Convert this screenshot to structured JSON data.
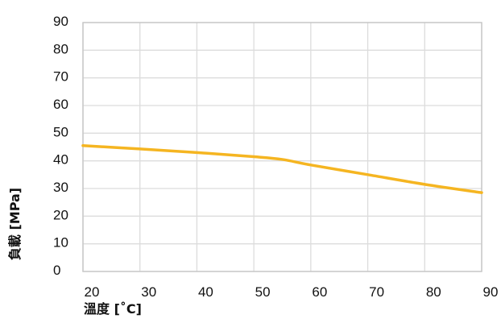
{
  "chart_data": {
    "type": "line",
    "title": "",
    "xlabel": "溫度 [˚C]",
    "ylabel": "負載 [MPa]",
    "xlim": [
      20,
      90
    ],
    "ylim": [
      0,
      90
    ],
    "x_ticks": [
      20,
      30,
      40,
      50,
      60,
      70,
      80,
      90
    ],
    "y_ticks": [
      0,
      10,
      20,
      30,
      40,
      50,
      60,
      70,
      80,
      90
    ],
    "grid": true,
    "legend": "none",
    "series": [
      {
        "color": "#f5b521",
        "x": [
          20,
          30,
          40,
          50,
          55,
          60,
          70,
          80,
          90
        ],
        "y": [
          45.5,
          44.3,
          43.0,
          41.5,
          40.5,
          38.5,
          35.0,
          31.5,
          28.5
        ]
      }
    ]
  }
}
